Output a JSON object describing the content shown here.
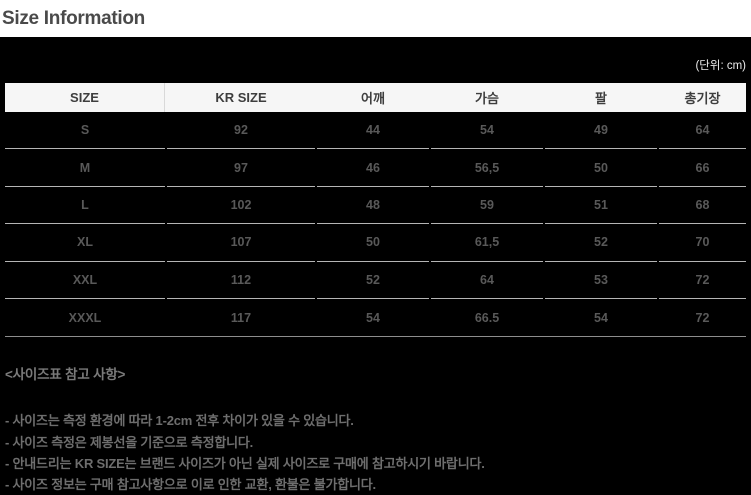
{
  "page": {
    "title": "Size Information",
    "unit_note": "(단위: cm)"
  },
  "table": {
    "columns": [
      "SIZE",
      "KR SIZE",
      "어깨",
      "가슴",
      "팔",
      "총기장"
    ],
    "rows": [
      [
        "S",
        "92",
        "44",
        "54",
        "49",
        "64"
      ],
      [
        "M",
        "97",
        "46",
        "56,5",
        "50",
        "66"
      ],
      [
        "L",
        "102",
        "48",
        "59",
        "51",
        "68"
      ],
      [
        "XL",
        "107",
        "50",
        "61,5",
        "52",
        "70"
      ],
      [
        "XXL",
        "112",
        "52",
        "64",
        "53",
        "72"
      ],
      [
        "XXXL",
        "117",
        "54",
        "66.5",
        "54",
        "72"
      ]
    ]
  },
  "notes": {
    "heading": "<사이즈표 참고 사항>",
    "items": [
      "- 사이즈는 측정 환경에 따라 1-2cm 전후 차이가 있을 수 있습니다.",
      "- 사이즈 측정은 제봉선을 기준으로 측정합니다.",
      "- 안내드리는 KR SIZE는 브랜드 사이즈가 아닌 실제 사이즈로 구매에 참고하시기 바랍니다.",
      "- 사이즈 정보는 구매 참고사항으로 이로 인한 교환, 환불은 불가합니다."
    ]
  },
  "colors": {
    "page_background": "#000000",
    "title_strip": "#ffffff",
    "header_row_bg": "#f6f6f6",
    "body_text": "#595959",
    "separator_line": "#b5b5b5",
    "table_bottom_border": "#8d8d8d"
  }
}
